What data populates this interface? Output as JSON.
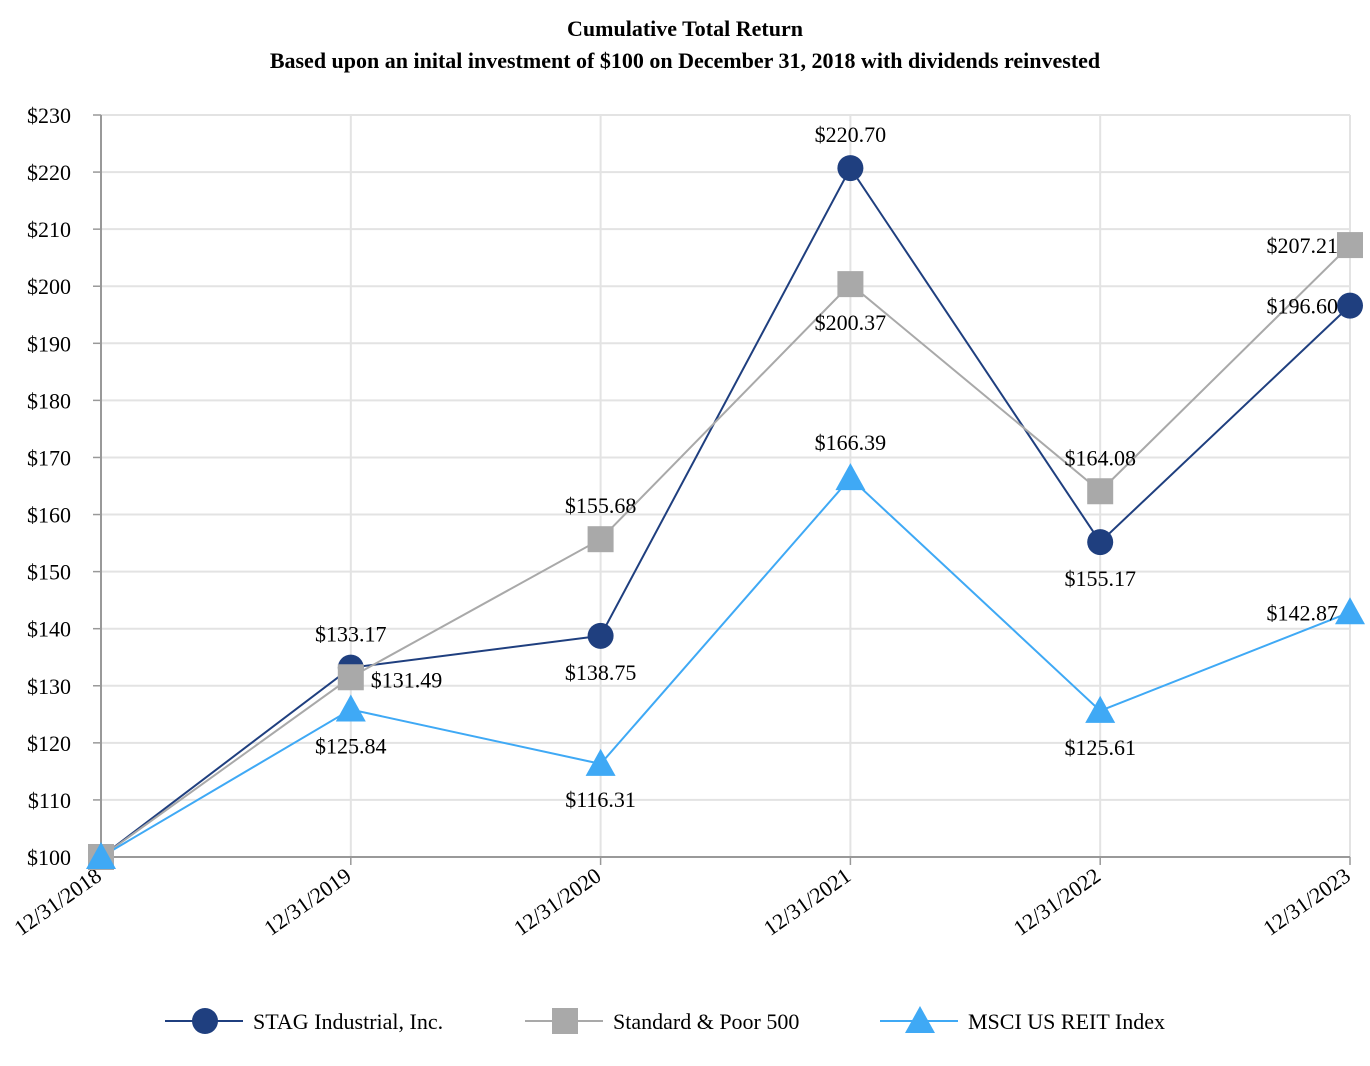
{
  "chart_data": {
    "type": "line",
    "title": "Cumulative Total Return",
    "subtitle": "Based upon an inital investment of $100 on December 31, 2018 with dividends reinvested",
    "categories": [
      "12/31/2018",
      "12/31/2019",
      "12/31/2020",
      "12/31/2021",
      "12/31/2022",
      "12/31/2023"
    ],
    "ylim": [
      100,
      230
    ],
    "yticks": [
      100,
      110,
      120,
      130,
      140,
      150,
      160,
      170,
      180,
      190,
      200,
      210,
      220,
      230
    ],
    "ytick_labels": [
      "$100",
      "$110",
      "$120",
      "$130",
      "$140",
      "$150",
      "$160",
      "$170",
      "$180",
      "$190",
      "$200",
      "$210",
      "$220",
      "$230"
    ],
    "grid": true,
    "legend_position": "bottom",
    "series": [
      {
        "name": "STAG Industrial, Inc.",
        "color": "#1f3f7f",
        "marker": "circle",
        "values": [
          100,
          133.17,
          138.75,
          220.7,
          155.17,
          196.6
        ],
        "labels": [
          "",
          "$133.17",
          "$138.75",
          "$220.70",
          "$155.17",
          "$196.60"
        ]
      },
      {
        "name": "Standard & Poor 500",
        "color": "#a9a9a9",
        "marker": "square",
        "values": [
          100,
          131.49,
          155.68,
          200.37,
          164.08,
          207.21
        ],
        "labels": [
          "",
          "$131.49",
          "$155.68",
          "$200.37",
          "$164.08",
          "$207.21"
        ]
      },
      {
        "name": "MSCI US REIT Index",
        "color": "#3fa9f5",
        "marker": "triangle",
        "values": [
          100,
          125.84,
          116.31,
          166.39,
          125.61,
          142.87
        ],
        "labels": [
          "",
          "$125.84",
          "$116.31",
          "$166.39",
          "$125.61",
          "$142.87"
        ]
      }
    ]
  }
}
